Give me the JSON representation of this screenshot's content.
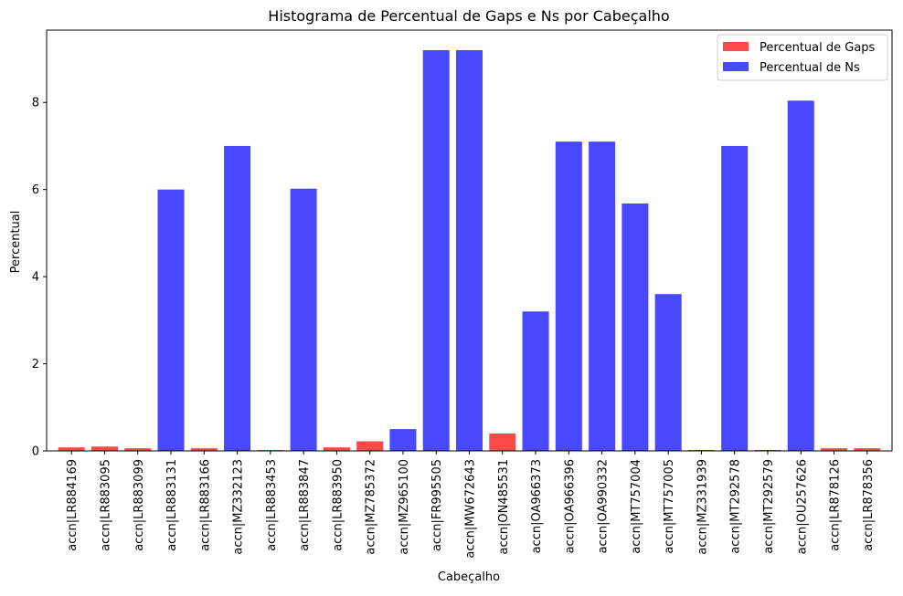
{
  "chart_data": {
    "type": "bar",
    "title": "Histograma de Percentual de Gaps e Ns por Cabeçalho",
    "xlabel": "Cabeçalho",
    "ylabel": "Percentual",
    "ylim": [
      0,
      9.66
    ],
    "yticks": [
      0,
      2,
      4,
      6,
      8
    ],
    "grid": false,
    "legend_position": "top-right",
    "categories": [
      "accn|LR884169",
      "accn|LR883095",
      "accn|LR883099",
      "accn|LR883131",
      "accn|LR883166",
      "accn|MZ332123",
      "accn|LR883453",
      "accn|LR883847",
      "accn|LR883950",
      "accn|MZ785372",
      "accn|MZ965100",
      "accn|FR995505",
      "accn|MW672643",
      "accn|ON485531",
      "accn|OA966373",
      "accn|OA966396",
      "accn|OA990332",
      "accn|MT757004",
      "accn|MT757005",
      "accn|MZ331939",
      "accn|MT292578",
      "accn|MT292579",
      "accn|OU257626",
      "accn|LR878126",
      "accn|LR878356"
    ],
    "series": [
      {
        "name": "Percentual de Gaps",
        "color": "#ff4848",
        "values": [
          0.08,
          0.1,
          0.06,
          0.0,
          0.06,
          0.0,
          0.02,
          0.0,
          0.08,
          0.22,
          0.0,
          0.0,
          0.0,
          0.4,
          0.0,
          0.0,
          0.0,
          0.0,
          0.0,
          0.0,
          0.0,
          0.0,
          0.0,
          0.06,
          0.06
        ]
      },
      {
        "name": "Percentual de Ns",
        "color": "#4848ff",
        "values": [
          0.0,
          0.0,
          0.0,
          6.0,
          0.0,
          7.0,
          0.0,
          6.02,
          0.0,
          0.0,
          0.5,
          9.2,
          9.2,
          0.0,
          3.2,
          7.1,
          7.1,
          5.68,
          3.6,
          0.02,
          7.0,
          0.02,
          8.04,
          0.0,
          0.0
        ]
      }
    ]
  }
}
